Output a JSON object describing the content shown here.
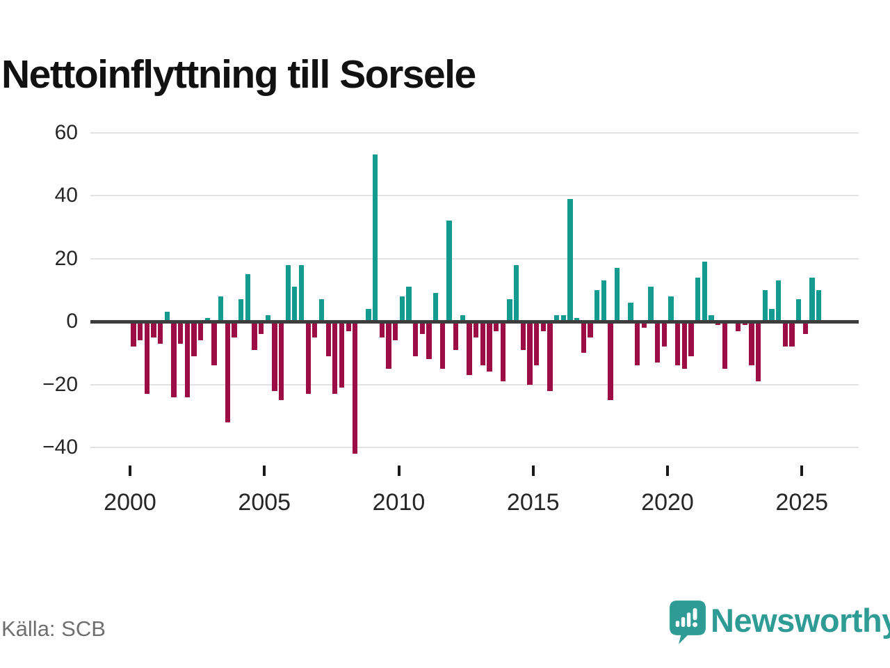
{
  "title": "Nettoinflyttning till Sorsele",
  "source": "Källa: SCB",
  "logo": {
    "text": "Newsworthy"
  },
  "colors": {
    "positive_bar": "#149b90",
    "negative_bar": "#9c0d45",
    "zero_line": "#3d3d3d",
    "gridline": "#e2e2e2",
    "logo_teal": "#2e9c94",
    "source_gray": "#6f6f6f"
  },
  "chart_data": {
    "type": "bar",
    "title": "Nettoinflyttning till Sorsele",
    "xlabel": "",
    "ylabel": "",
    "frequency": "quarterly",
    "ylim": [
      -45,
      62
    ],
    "grid": true,
    "y_ticks": [
      60,
      40,
      20,
      0,
      -20,
      -40
    ],
    "y_tick_labels": [
      "60",
      "40",
      "20",
      "0",
      "−20",
      "−40"
    ],
    "x_tick_years": [
      2000,
      2005,
      2010,
      2015,
      2020,
      2025
    ],
    "x_tick_labels": [
      "2000",
      "2005",
      "2010",
      "2015",
      "2020",
      "2025"
    ],
    "categories": [
      "2000Q1",
      "2000Q2",
      "2000Q3",
      "2000Q4",
      "2001Q1",
      "2001Q2",
      "2001Q3",
      "2001Q4",
      "2002Q1",
      "2002Q2",
      "2002Q3",
      "2002Q4",
      "2003Q1",
      "2003Q2",
      "2003Q3",
      "2003Q4",
      "2004Q1",
      "2004Q2",
      "2004Q3",
      "2004Q4",
      "2005Q1",
      "2005Q2",
      "2005Q3",
      "2005Q4",
      "2006Q1",
      "2006Q2",
      "2006Q3",
      "2006Q4",
      "2007Q1",
      "2007Q2",
      "2007Q3",
      "2007Q4",
      "2008Q1",
      "2008Q2",
      "2008Q3",
      "2008Q4",
      "2009Q1",
      "2009Q2",
      "2009Q3",
      "2009Q4",
      "2010Q1",
      "2010Q2",
      "2010Q3",
      "2010Q4",
      "2011Q1",
      "2011Q2",
      "2011Q3",
      "2011Q4",
      "2012Q1",
      "2012Q2",
      "2012Q3",
      "2012Q4",
      "2013Q1",
      "2013Q2",
      "2013Q3",
      "2013Q4",
      "2014Q1",
      "2014Q2",
      "2014Q3",
      "2014Q4",
      "2015Q1",
      "2015Q2",
      "2015Q3",
      "2015Q4",
      "2016Q1",
      "2016Q2",
      "2016Q3",
      "2016Q4",
      "2017Q1",
      "2017Q2",
      "2017Q3",
      "2017Q4",
      "2018Q1",
      "2018Q2",
      "2018Q3",
      "2018Q4",
      "2019Q1",
      "2019Q2",
      "2019Q3",
      "2019Q4",
      "2020Q1",
      "2020Q2",
      "2020Q3",
      "2020Q4",
      "2021Q1",
      "2021Q2",
      "2021Q3",
      "2021Q4",
      "2022Q1",
      "2022Q2",
      "2022Q3",
      "2022Q4",
      "2023Q1",
      "2023Q2",
      "2023Q3",
      "2023Q4",
      "2024Q1",
      "2024Q2",
      "2024Q3",
      "2024Q4",
      "2025Q1",
      "2025Q2",
      "2025Q3"
    ],
    "values": [
      -8,
      -6,
      -23,
      -5,
      -7,
      3,
      -24,
      -7,
      -24,
      -11,
      -6,
      1,
      -14,
      8,
      -32,
      -5,
      7,
      15,
      -9,
      -4,
      2,
      -22,
      -25,
      18,
      11,
      18,
      -23,
      -5,
      7,
      -11,
      -23,
      -21,
      -3,
      -42,
      0,
      4,
      53,
      -5,
      -15,
      -6,
      8,
      11,
      -11,
      -4,
      -12,
      9,
      -15,
      32,
      -9,
      2,
      -17,
      -5,
      -14,
      -16,
      -3,
      -19,
      7,
      18,
      -9,
      -20,
      -14,
      -3,
      -22,
      2,
      2,
      39,
      1,
      -10,
      -5,
      10,
      13,
      -25,
      17,
      0,
      6,
      -14,
      -2,
      11,
      -13,
      -8,
      8,
      -14,
      -15,
      -11,
      14,
      19,
      2,
      -1,
      -15,
      0,
      -3,
      -1,
      -14,
      -19,
      10,
      4,
      13,
      -8,
      -8,
      7,
      -4,
      14,
      10
    ]
  }
}
